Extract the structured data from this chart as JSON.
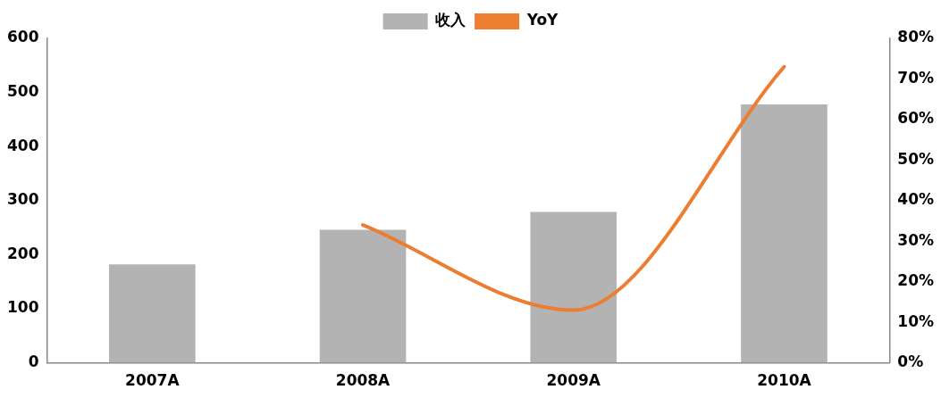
{
  "chart_data": {
    "type": "bar",
    "categories": [
      "2007A",
      "2008A",
      "2009A",
      "2010A"
    ],
    "series": [
      {
        "name": "收入",
        "color": "#b3b3b3",
        "values": [
          182,
          246,
          279,
          478
        ]
      },
      {
        "name": "YoY",
        "type": "line",
        "axis": "y2",
        "color": "#ed7d31",
        "values": [
          null,
          34,
          13,
          73
        ]
      }
    ],
    "ylim": [
      0,
      600
    ],
    "yticks": [
      0,
      100,
      200,
      300,
      400,
      500,
      600
    ],
    "y2lim": [
      0,
      80
    ],
    "y2ticks": [
      {
        "value": 0,
        "label": "0%"
      },
      {
        "value": 10,
        "label": "10%"
      },
      {
        "value": 20,
        "label": "20%"
      },
      {
        "value": 30,
        "label": "30%"
      },
      {
        "value": 40,
        "label": "40%"
      },
      {
        "value": 50,
        "label": "50%"
      },
      {
        "value": 60,
        "label": "60%"
      },
      {
        "value": 70,
        "label": "70%"
      },
      {
        "value": 80,
        "label": "80%"
      }
    ],
    "grid": false,
    "legend": "top",
    "marker": "none",
    "line_style": "solid"
  }
}
